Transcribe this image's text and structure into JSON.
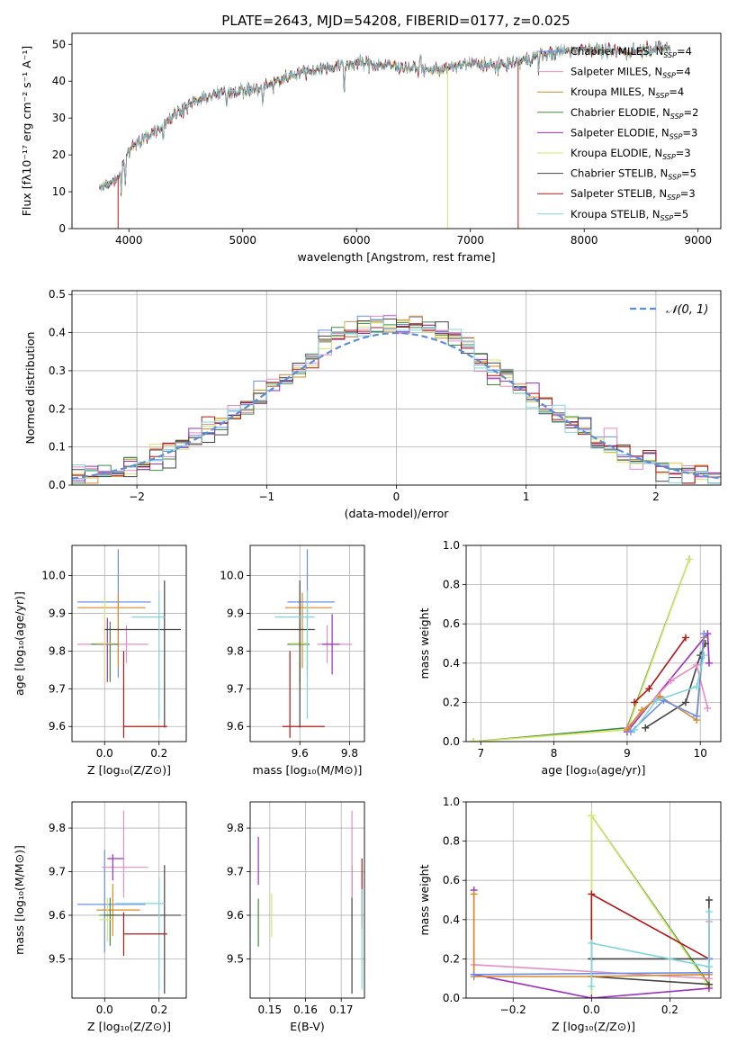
{
  "figure_title": "PLATE=2643, MJD=54208, FIBERID=0177, z=0.025",
  "colors": {
    "Chabrier MILES": "#6b8fe8",
    "Salpeter MILES": "#e88cc4",
    "Kroupa MILES": "#d98a28",
    "Chabrier ELODIE": "#3d8c3d",
    "Salpeter ELODIE": "#9a2fc0",
    "Kroupa ELODIE": "#d7e66a",
    "Chabrier STELIB": "#444444",
    "Salpeter STELIB": "#b01818",
    "Kroupa STELIB": "#7fd6dc",
    "normal_curve": "#5b8ed8",
    "grid": "#b0b0b0"
  },
  "chart_data": [
    {
      "type": "line",
      "title": "PLATE=2643, MJD=54208, FIBERID=0177, z=0.025",
      "xlabel": "wavelength [Angstrom, rest frame]",
      "ylabel": "Flux [fλ10⁻¹⁷ erg cm⁻² s⁻¹ A⁻¹]",
      "xlim": [
        3500,
        9200
      ],
      "ylim": [
        0,
        53
      ],
      "xticks": [
        4000,
        5000,
        6000,
        7000,
        8000,
        9000
      ],
      "yticks": [
        0,
        10,
        20,
        30,
        40,
        50
      ],
      "grid": false,
      "legend_position": "right",
      "legend": [
        {
          "name": "Chabrier MILES",
          "nssp": "4"
        },
        {
          "name": "Salpeter MILES",
          "nssp": "4"
        },
        {
          "name": "Kroupa MILES",
          "nssp": "4"
        },
        {
          "name": "Chabrier ELODIE",
          "nssp": "2"
        },
        {
          "name": "Salpeter ELODIE",
          "nssp": "3"
        },
        {
          "name": "Kroupa ELODIE",
          "nssp": "3"
        },
        {
          "name": "Chabrier STELIB",
          "nssp": "5"
        },
        {
          "name": "Salpeter STELIB",
          "nssp": "3"
        },
        {
          "name": "Kroupa STELIB",
          "nssp": "5"
        }
      ],
      "continuum_x": [
        3750,
        3900,
        4000,
        4100,
        4250,
        4400,
        4550,
        4700,
        4850,
        5000,
        5150,
        5300,
        5450,
        5600,
        5800,
        6000,
        6200,
        6400,
        6600,
        6800,
        7000,
        7200,
        7400,
        7600,
        7800,
        8000,
        8200,
        8400,
        8600,
        8800
      ],
      "continuum_y": [
        11,
        14,
        21,
        24,
        27,
        31,
        34,
        36,
        37,
        37.5,
        38,
        40,
        42,
        43,
        44,
        45,
        44.5,
        44,
        43,
        43.5,
        45,
        44,
        45,
        47,
        48,
        49,
        48,
        48,
        49,
        49
      ]
    },
    {
      "type": "bar",
      "xlabel": "(data-model)/error",
      "ylabel": "Normed distribution",
      "xlim": [
        -2.5,
        2.5
      ],
      "ylim": [
        0,
        0.51
      ],
      "xticks": [
        -2,
        -1,
        0,
        1,
        2
      ],
      "yticks": [
        0.0,
        0.1,
        0.2,
        0.3,
        0.4,
        0.5
      ],
      "grid": true,
      "legend_position": "top-right",
      "normal_label": "𝒩(0, 1)",
      "bin_edges_start": -2.5,
      "bin_width": 0.1
    },
    {
      "type": "scatter",
      "xlabel": "Z [log₁₀(Z/Z⊙)]",
      "ylabel": "age  [log₁₀(age/yr)]",
      "xlim": [
        -0.12,
        0.3
      ],
      "ylim": [
        9.56,
        10.08
      ],
      "xticks": [
        0.0,
        0.2
      ],
      "yticks": [
        9.6,
        9.7,
        9.8,
        9.9,
        10.0
      ],
      "grid": true,
      "points": [
        {
          "model": "Chabrier MILES",
          "x": 0.05,
          "xerr": [
            0.15,
            0.12
          ],
          "y": 9.93,
          "yerr": [
            0.2,
            0.14
          ]
        },
        {
          "model": "Kroupa MILES",
          "x": 0.05,
          "xerr": [
            0.15,
            0.1
          ],
          "y": 9.915,
          "yerr": [
            0.16,
            0.04
          ]
        },
        {
          "model": "Salpeter MILES",
          "x": 0.08,
          "xerr": [
            0.18,
            0.08
          ],
          "y": 9.818,
          "yerr": [
            0.05,
            0.05
          ]
        },
        {
          "model": "Chabrier ELODIE",
          "x": 0.02,
          "xerr": [
            0.07,
            0.03
          ],
          "y": 9.818,
          "yerr": [
            0.1,
            0.06
          ]
        },
        {
          "model": "Salpeter ELODIE",
          "x": 0.01,
          "xerr": [
            0.03,
            0.02
          ],
          "y": 9.818,
          "yerr": [
            0.1,
            0.07
          ]
        },
        {
          "model": "Kroupa ELODIE",
          "x": 0.0,
          "xerr": [
            0.03,
            0.03
          ],
          "y": 9.82,
          "yerr": [
            0.1,
            0.12
          ]
        },
        {
          "model": "Chabrier STELIB",
          "x": 0.22,
          "xerr": [
            0.22,
            0.06
          ],
          "y": 9.857,
          "yerr": [
            0.26,
            0.13
          ]
        },
        {
          "model": "Kroupa STELIB",
          "x": 0.2,
          "xerr": [
            0.1,
            0.02
          ],
          "y": 9.89,
          "yerr": [
            0.27,
            0.07
          ]
        },
        {
          "model": "Salpeter STELIB",
          "x": 0.07,
          "xerr": [
            0.0,
            0.16
          ],
          "y": 9.6,
          "yerr": [
            0.03,
            0.2
          ]
        }
      ]
    },
    {
      "type": "scatter",
      "xlabel": "mass [log₁₀(M/M⊙)]",
      "ylabel": "",
      "xlim": [
        9.4,
        9.86
      ],
      "ylim": [
        9.56,
        10.08
      ],
      "xticks": [
        9.6,
        9.8
      ],
      "yticks": [
        9.6,
        9.7,
        9.8,
        9.9,
        10.0
      ],
      "grid": true,
      "points": [
        {
          "model": "Chabrier MILES",
          "x": 9.63,
          "xerr": [
            0.08,
            0.11
          ],
          "y": 9.93,
          "yerr": [
            0.2,
            0.14
          ]
        },
        {
          "model": "Kroupa MILES",
          "x": 9.61,
          "xerr": [
            0.07,
            0.12
          ],
          "y": 9.915,
          "yerr": [
            0.16,
            0.04
          ]
        },
        {
          "model": "Salpeter MILES",
          "x": 9.71,
          "xerr": [
            0.04,
            0.1
          ],
          "y": 9.818,
          "yerr": [
            0.05,
            0.05
          ]
        },
        {
          "model": "Chabrier ELODIE",
          "x": 9.6,
          "xerr": [
            0.05,
            0.04
          ],
          "y": 9.818,
          "yerr": [
            0.1,
            0.06
          ]
        },
        {
          "model": "Salpeter ELODIE",
          "x": 9.73,
          "xerr": [
            0.04,
            0.03
          ],
          "y": 9.818,
          "yerr": [
            0.08,
            0.08
          ]
        },
        {
          "model": "Kroupa ELODIE",
          "x": 9.6,
          "xerr": [
            0.04,
            0.03
          ],
          "y": 9.82,
          "yerr": [
            0.1,
            0.1
          ]
        },
        {
          "model": "Chabrier STELIB",
          "x": 9.6,
          "xerr": [
            0.17,
            0.06
          ],
          "y": 9.857,
          "yerr": [
            0.26,
            0.13
          ]
        },
        {
          "model": "Kroupa STELIB",
          "x": 9.63,
          "xerr": [
            0.13,
            0.03
          ],
          "y": 9.89,
          "yerr": [
            0.27,
            0.07
          ]
        },
        {
          "model": "Salpeter STELIB",
          "x": 9.56,
          "xerr": [
            0.03,
            0.14
          ],
          "y": 9.6,
          "yerr": [
            0.03,
            0.2
          ]
        }
      ]
    },
    {
      "type": "line",
      "xlabel": "age  [log₁₀(age/yr)]",
      "ylabel": "mass weight",
      "xlim": [
        6.8,
        10.28
      ],
      "ylim": [
        0,
        1.0
      ],
      "xticks": [
        7,
        8,
        9,
        10
      ],
      "yticks": [
        0.0,
        0.2,
        0.4,
        0.6,
        0.8,
        1.0
      ],
      "grid": true,
      "series": [
        {
          "model": "Chabrier ELODIE",
          "x": [
            6.9,
            9.0,
            9.85
          ],
          "y": [
            0.0,
            0.07,
            0.93
          ]
        },
        {
          "model": "Kroupa ELODIE",
          "x": [
            6.9,
            9.0,
            9.85
          ],
          "y": [
            0.0,
            0.06,
            0.93
          ]
        },
        {
          "model": "Salpeter ELODIE",
          "x": [
            9.0,
            10.1,
            10.12
          ],
          "y": [
            0.05,
            0.55,
            0.4
          ]
        },
        {
          "model": "Salpeter STELIB",
          "x": [
            9.1,
            9.3,
            9.8
          ],
          "y": [
            0.2,
            0.27,
            0.53
          ]
        },
        {
          "model": "Chabrier STELIB",
          "x": [
            9.25,
            9.8,
            10.0,
            10.07
          ],
          "y": [
            0.07,
            0.2,
            0.44,
            0.5
          ]
        },
        {
          "model": "Salpeter MILES",
          "x": [
            9.0,
            9.6,
            9.95,
            10.1
          ],
          "y": [
            0.07,
            0.31,
            0.39,
            0.17
          ]
        },
        {
          "model": "Kroupa MILES",
          "x": [
            9.0,
            9.2,
            9.45,
            9.95,
            10.05
          ],
          "y": [
            0.06,
            0.16,
            0.23,
            0.11,
            0.53
          ]
        },
        {
          "model": "Chabrier MILES",
          "x": [
            9.05,
            9.5,
            9.95,
            10.05
          ],
          "y": [
            0.05,
            0.21,
            0.13,
            0.55
          ]
        },
        {
          "model": "Kroupa STELIB",
          "x": [
            9.1,
            9.4,
            9.95,
            10.05
          ],
          "y": [
            0.06,
            0.21,
            0.28,
            0.44
          ]
        }
      ]
    },
    {
      "type": "scatter",
      "xlabel": "Z [log₁₀(Z/Z⊙)]",
      "ylabel": "mass [log₁₀(M/M⊙)]",
      "xlim": [
        -0.12,
        0.3
      ],
      "ylim": [
        9.41,
        9.86
      ],
      "xticks": [
        0.0,
        0.2
      ],
      "yticks": [
        9.5,
        9.6,
        9.7,
        9.8
      ],
      "grid": true,
      "points": [
        {
          "model": "Chabrier MILES",
          "x": 0.0,
          "xerr": [
            0.1,
            0.15
          ],
          "y": 9.625,
          "yerr": [
            0.11,
            0.125
          ]
        },
        {
          "model": "Salpeter MILES",
          "x": 0.07,
          "xerr": [
            0.08,
            0.09
          ],
          "y": 9.71,
          "yerr": [
            0.07,
            0.13
          ]
        },
        {
          "model": "Kroupa MILES",
          "x": 0.03,
          "xerr": [
            0.06,
            0.1
          ],
          "y": 9.612,
          "yerr": [
            0.06,
            0.06
          ]
        },
        {
          "model": "Chabrier ELODIE",
          "x": 0.02,
          "xerr": [
            0.04,
            0.03
          ],
          "y": 9.6,
          "yerr": [
            0.07,
            0.04
          ]
        },
        {
          "model": "Salpeter ELODIE",
          "x": 0.03,
          "xerr": [
            0.02,
            0.04
          ],
          "y": 9.73,
          "yerr": [
            0.05,
            0.01
          ]
        },
        {
          "model": "Kroupa ELODIE",
          "x": 0.01,
          "xerr": [
            0.03,
            0.02
          ],
          "y": 9.59,
          "yerr": [
            0.05,
            0.05
          ]
        },
        {
          "model": "Chabrier STELIB",
          "x": 0.22,
          "xerr": [
            0.22,
            0.06
          ],
          "y": 9.6,
          "yerr": [
            0.18,
            0.115
          ]
        },
        {
          "model": "Kroupa STELIB",
          "x": 0.2,
          "xerr": [
            0.16,
            0.02
          ],
          "y": 9.627,
          "yerr": [
            0.2,
            0.06
          ]
        },
        {
          "model": "Salpeter STELIB",
          "x": 0.07,
          "xerr": [
            0.0,
            0.16
          ],
          "y": 9.557,
          "yerr": [
            0.05,
            0.05
          ]
        }
      ]
    },
    {
      "type": "scatter",
      "xlabel": "E(B-V)",
      "ylabel": "",
      "xlim": [
        0.1445,
        0.1765
      ],
      "ylim": [
        9.41,
        9.86
      ],
      "xticks": [
        0.15,
        0.16,
        0.17
      ],
      "yticks": [
        9.5,
        9.6,
        9.7,
        9.8
      ],
      "grid": true,
      "points": [
        {
          "model": "Chabrier ELODIE",
          "x": 0.1468,
          "y": 9.588,
          "yerr": [
            0.06,
            0.05
          ]
        },
        {
          "model": "Salpeter ELODIE",
          "x": 0.1468,
          "y": 9.73,
          "yerr": [
            0.06,
            0.05
          ]
        },
        {
          "model": "Kroupa ELODIE",
          "x": 0.1505,
          "y": 9.6,
          "yerr": [
            0.05,
            0.05
          ]
        },
        {
          "model": "Chabrier STELIB",
          "x": 0.173,
          "y": 9.6,
          "yerr": [
            0.18,
            0.115
          ]
        },
        {
          "model": "Salpeter MILES",
          "x": 0.173,
          "y": 9.71,
          "yerr": [
            0.07,
            0.13
          ]
        },
        {
          "model": "Salpeter STELIB",
          "x": 0.1758,
          "y": 9.65,
          "yerr": [
            0.08,
            0.08
          ]
        },
        {
          "model": "Kroupa STELIB",
          "x": 0.1758,
          "y": 9.55,
          "yerr": [
            0.12,
            0.11
          ]
        }
      ]
    },
    {
      "type": "line",
      "xlabel": "Z [log₁₀(Z/Z⊙)]",
      "ylabel": "mass weight",
      "xlim": [
        -0.32,
        0.33
      ],
      "ylim": [
        0,
        1.0
      ],
      "xticks": [
        -0.2,
        0.0,
        0.2
      ],
      "yticks": [
        0.0,
        0.2,
        0.4,
        0.6,
        0.8,
        1.0
      ],
      "grid": true,
      "series": [
        {
          "model": "Chabrier ELODIE",
          "x": [
            0.0,
            0.0,
            0.3
          ],
          "y": [
            0.0,
            0.93,
            0.07
          ]
        },
        {
          "model": "Kroupa ELODIE",
          "x": [
            0.0,
            0.0,
            0.3
          ],
          "y": [
            0.0,
            0.93,
            0.06
          ]
        },
        {
          "model": "Salpeter ELODIE",
          "x": [
            -0.3,
            -0.3,
            0.0,
            0.3
          ],
          "y": [
            0.55,
            0.12,
            0.0,
            0.05
          ]
        },
        {
          "model": "Salpeter STELIB",
          "x": [
            0.0,
            0.0,
            0.3
          ],
          "y": [
            0.2,
            0.53,
            0.2
          ]
        },
        {
          "model": "Chabrier STELIB",
          "x": [
            0.3,
            0.3,
            0.0,
            0.0,
            0.3
          ],
          "y": [
            0.5,
            0.2,
            0.2,
            0.11,
            0.07
          ]
        },
        {
          "model": "Salpeter MILES",
          "x": [
            -0.3,
            0.3,
            0.3
          ],
          "y": [
            0.17,
            0.1,
            0.39
          ]
        },
        {
          "model": "Kroupa MILES",
          "x": [
            -0.3,
            -0.3,
            0.0,
            0.3
          ],
          "y": [
            0.53,
            0.11,
            0.11,
            0.12
          ]
        },
        {
          "model": "Chabrier MILES",
          "x": [
            -0.3,
            0.3,
            0.3
          ],
          "y": [
            0.12,
            0.13,
            0.2
          ]
        },
        {
          "model": "Kroupa STELIB",
          "x": [
            0.0,
            0.0,
            0.3,
            0.3
          ],
          "y": [
            0.06,
            0.28,
            0.16,
            0.44
          ]
        }
      ]
    }
  ]
}
